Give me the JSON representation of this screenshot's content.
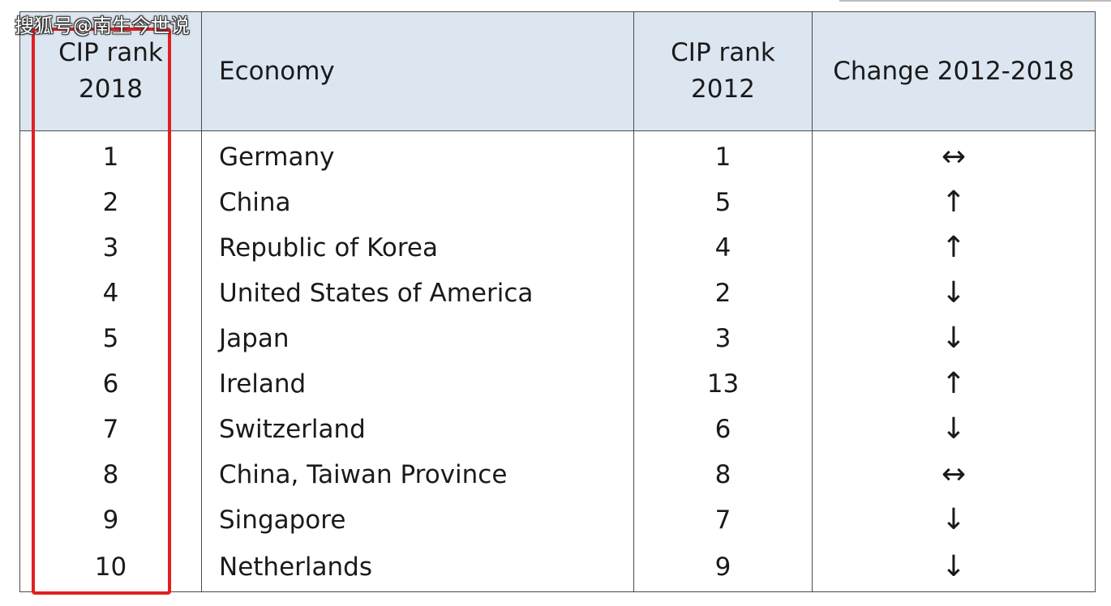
{
  "watermark": "搜狐号@南生今世说",
  "table": {
    "headers": {
      "rank2018_line1": "CIP rank",
      "rank2018_line2": "2018",
      "economy": "Economy",
      "rank2012_line1": "CIP rank",
      "rank2012_line2": "2012",
      "change": "Change 2012-2018"
    },
    "rows": [
      {
        "rank2018": "1",
        "economy": "Germany",
        "rank2012": "1",
        "change": "↔"
      },
      {
        "rank2018": "2",
        "economy": "China",
        "rank2012": "5",
        "change": "↑"
      },
      {
        "rank2018": "3",
        "economy": "Republic of Korea",
        "rank2012": "4",
        "change": "↑"
      },
      {
        "rank2018": "4",
        "economy": "United States of America",
        "rank2012": "2",
        "change": "↓"
      },
      {
        "rank2018": "5",
        "economy": "Japan",
        "rank2012": "3",
        "change": "↓"
      },
      {
        "rank2018": "6",
        "economy": "Ireland",
        "rank2012": "13",
        "change": "↑"
      },
      {
        "rank2018": "7",
        "economy": "Switzerland",
        "rank2012": "6",
        "change": "↓"
      },
      {
        "rank2018": "8",
        "economy": "China, Taiwan Province",
        "rank2012": "8",
        "change": "↔"
      },
      {
        "rank2018": "9",
        "economy": "Singapore",
        "rank2012": "7",
        "change": "↓"
      },
      {
        "rank2018": "10",
        "economy": "Netherlands",
        "rank2012": "9",
        "change": "↓"
      }
    ]
  },
  "colors": {
    "header_bg": "#dce6f1",
    "highlight_border": "#e02020"
  }
}
